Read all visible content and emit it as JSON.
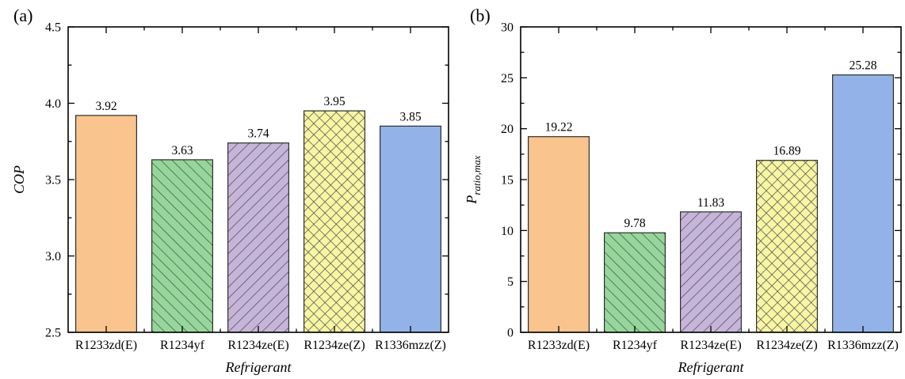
{
  "figure": {
    "background": "#ffffff",
    "panel_labels": [
      "(a)",
      "(b)"
    ]
  },
  "style": {
    "axis_color": "#000000",
    "text_color": "#000000",
    "edge_color": "#2e2e2e",
    "hatch_color": "#474747",
    "background": "#ffffff",
    "bar_styles": [
      {
        "category": "R1233zd(E)",
        "fill": "#F9C48D",
        "hatch": "none"
      },
      {
        "category": "R1234yf",
        "fill": "#95D79A",
        "hatch": "diagonal-forward"
      },
      {
        "category": "R1234ze(E)",
        "fill": "#C6B5DA",
        "hatch": "diagonal-backward"
      },
      {
        "category": "R1234ze(Z)",
        "fill": "#F8F6A4",
        "hatch": "diagonal-cross"
      },
      {
        "category": "R1336mzz(Z)",
        "fill": "#93B3E8",
        "hatch": "none"
      }
    ]
  },
  "chart_data": [
    {
      "type": "bar",
      "panel_label": "(a)",
      "title": "",
      "xlabel": "Refrigerant",
      "ylabel": "COP",
      "ylabel_sub": "",
      "categories": [
        "R1233zd(E)",
        "R1234yf",
        "R1234ze(E)",
        "R1234ze(Z)",
        "R1336mzz(Z)"
      ],
      "values": [
        3.92,
        3.63,
        3.74,
        3.95,
        3.85
      ],
      "data_labels": [
        "3.92",
        "3.63",
        "3.74",
        "3.95",
        "3.85"
      ],
      "ylim": [
        2.5,
        4.5
      ],
      "yticks": [
        {
          "v": 2.5,
          "label": "2.5"
        },
        {
          "v": 3.0,
          "label": "3.0"
        },
        {
          "v": 3.5,
          "label": "3.5"
        },
        {
          "v": 4.0,
          "label": "4.0"
        },
        {
          "v": 4.5,
          "label": "4.5"
        }
      ],
      "minor_step": 0.25,
      "grid": false,
      "legend": null,
      "tick_direction": "in"
    },
    {
      "type": "bar",
      "panel_label": "(b)",
      "title": "",
      "xlabel": "Refrigerant",
      "ylabel": "P",
      "ylabel_sub": "ratio,max",
      "categories": [
        "R1233zd(E)",
        "R1234yf",
        "R1234ze(E)",
        "R1234ze(Z)",
        "R1336mzz(Z)"
      ],
      "values": [
        19.22,
        9.78,
        11.83,
        16.89,
        25.28
      ],
      "data_labels": [
        "19.22",
        "9.78",
        "11.83",
        "16.89",
        "25.28"
      ],
      "ylim": [
        0,
        30
      ],
      "yticks": [
        {
          "v": 0,
          "label": "0"
        },
        {
          "v": 5,
          "label": "5"
        },
        {
          "v": 10,
          "label": "10"
        },
        {
          "v": 15,
          "label": "15"
        },
        {
          "v": 20,
          "label": "20"
        },
        {
          "v": 25,
          "label": "25"
        },
        {
          "v": 30,
          "label": "30"
        }
      ],
      "minor_step": 2.5,
      "grid": false,
      "legend": null,
      "tick_direction": "in"
    }
  ]
}
